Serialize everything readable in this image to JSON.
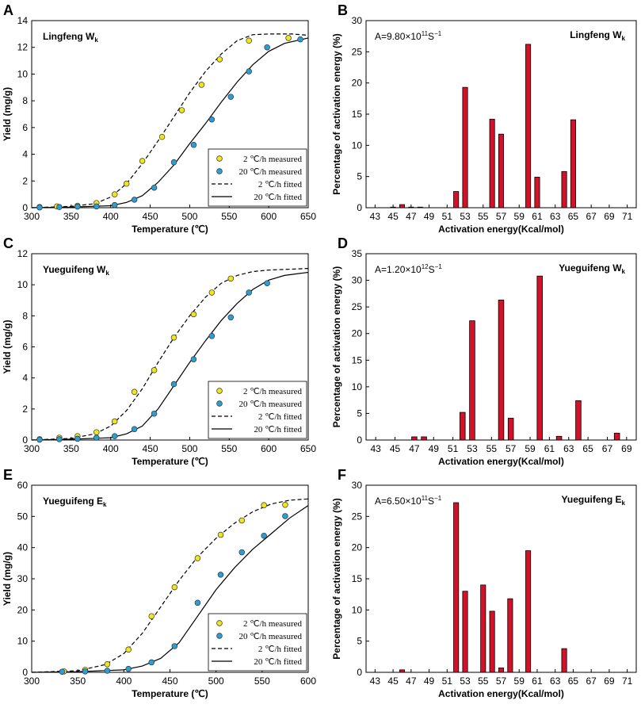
{
  "colors": {
    "marker_2": "#f2e51a",
    "marker_20": "#2a9fd6",
    "bar": "#d3122a",
    "axis": "#000000"
  },
  "chart_data": [
    {
      "id": "A",
      "type": "line",
      "letter": "A",
      "inner_label": "Lingfeng W",
      "inner_sub": "k",
      "xlabel": "Temperature  (℃)",
      "ylabel": "Yield  (mg/g)",
      "xlim": [
        300,
        650
      ],
      "ylim": [
        0,
        14
      ],
      "xticks": [
        "300",
        "350",
        "400",
        "450",
        "500",
        "550",
        "600",
        "650"
      ],
      "yticks": [
        "0",
        "2",
        "4",
        "6",
        "8",
        "10",
        "12",
        "14"
      ],
      "legend": [
        "2 ℃/h  measured",
        "20 ℃/h  measured",
        "2 ℃/h  fitted",
        "20 ℃/h  fitted"
      ],
      "series": [
        {
          "name": "2 ℃/h measured",
          "kind": "marker",
          "color": "#f2e51a",
          "x": [
            310,
            332,
            358,
            382,
            405,
            420,
            440,
            465,
            490,
            515,
            538,
            575,
            625
          ],
          "y": [
            0.05,
            0.1,
            0.15,
            0.35,
            1.0,
            1.8,
            3.5,
            5.3,
            7.3,
            9.2,
            11.1,
            12.5,
            12.7
          ]
        },
        {
          "name": "20 ℃/h measured",
          "kind": "marker",
          "color": "#2a9fd6",
          "x": [
            310,
            335,
            358,
            382,
            405,
            430,
            455,
            480,
            505,
            528,
            552,
            575,
            598,
            640
          ],
          "y": [
            0.02,
            0.05,
            0.08,
            0.1,
            0.2,
            0.6,
            1.5,
            3.4,
            4.7,
            6.6,
            8.3,
            10.2,
            12.0,
            12.6
          ]
        },
        {
          "name": "2 ℃/h fitted",
          "kind": "dashed",
          "x": [
            300,
            350,
            380,
            400,
            420,
            440,
            460,
            480,
            500,
            520,
            540,
            560,
            580,
            600,
            630,
            650
          ],
          "y": [
            0,
            0.1,
            0.3,
            0.8,
            1.8,
            3.3,
            5.0,
            6.8,
            8.6,
            10.2,
            11.5,
            12.5,
            12.95,
            13.0,
            13.0,
            12.9
          ]
        },
        {
          "name": "20 ℃/h fitted",
          "kind": "solid",
          "x": [
            300,
            350,
            400,
            420,
            440,
            460,
            480,
            500,
            520,
            540,
            560,
            580,
            600,
            620,
            650
          ],
          "y": [
            0,
            0.05,
            0.15,
            0.4,
            0.9,
            1.9,
            3.2,
            4.8,
            6.3,
            7.9,
            9.4,
            10.7,
            11.7,
            12.3,
            12.7
          ]
        }
      ]
    },
    {
      "id": "B",
      "type": "bar",
      "letter": "B",
      "inner_label": "Lingfeng W",
      "inner_sub": "k",
      "annotation_prefix": "A=9.80×10",
      "annotation_exp": "11",
      "annotation_unit": "S",
      "annotation_unit_exp": "−1",
      "xlabel": "Activation energy(Kcal/mol)",
      "ylabel": "Percentage of activation energy (%)",
      "xlim": [
        42,
        72
      ],
      "ylim": [
        0,
        30
      ],
      "xticks": [
        "43",
        "45",
        "47",
        "49",
        "51",
        "53",
        "55",
        "57",
        "59",
        "61",
        "63",
        "65",
        "67",
        "69",
        "71"
      ],
      "yticks": [
        "0",
        "5",
        "10",
        "15",
        "20",
        "25",
        "30"
      ],
      "x": [
        45,
        46,
        47,
        48,
        52,
        53,
        56,
        57,
        60,
        61,
        64,
        65
      ],
      "values": [
        0.1,
        0.5,
        0.1,
        0.1,
        2.6,
        19.3,
        14.2,
        11.8,
        26.2,
        4.9,
        5.8,
        14.1
      ]
    },
    {
      "id": "C",
      "type": "line",
      "letter": "C",
      "inner_label": "Yueguifeng W",
      "inner_sub": "k",
      "xlabel": "Temperature  (℃)",
      "ylabel": "Yield  (mg/g)",
      "xlim": [
        300,
        650
      ],
      "ylim": [
        0,
        12
      ],
      "xticks": [
        "300",
        "350",
        "400",
        "450",
        "500",
        "550",
        "600",
        "650"
      ],
      "yticks": [
        "0",
        "2",
        "4",
        "6",
        "8",
        "10",
        "12"
      ],
      "legend": [
        "2 ℃/h  measured",
        "20 ℃/h  measured",
        "2 ℃/h  fitted",
        "20 ℃/h  fitted"
      ],
      "series": [
        {
          "name": "2 ℃/h measured",
          "kind": "marker",
          "color": "#f2e51a",
          "x": [
            310,
            335,
            358,
            382,
            405,
            430,
            455,
            480,
            505,
            528,
            552
          ],
          "y": [
            0.05,
            0.15,
            0.25,
            0.5,
            1.2,
            3.1,
            4.5,
            6.6,
            8.1,
            9.5,
            10.4
          ]
        },
        {
          "name": "20 ℃/h measured",
          "kind": "marker",
          "color": "#2a9fd6",
          "x": [
            310,
            335,
            358,
            382,
            405,
            430,
            455,
            480,
            505,
            528,
            552,
            575,
            598
          ],
          "y": [
            0.02,
            0.05,
            0.08,
            0.15,
            0.25,
            0.7,
            1.7,
            3.6,
            5.2,
            6.7,
            7.9,
            9.5,
            10.1
          ]
        },
        {
          "name": "2 ℃/h fitted",
          "kind": "dashed",
          "x": [
            300,
            350,
            380,
            400,
            420,
            440,
            460,
            480,
            500,
            520,
            540,
            560,
            580,
            600,
            650
          ],
          "y": [
            0,
            0.1,
            0.4,
            0.9,
            1.9,
            3.3,
            5.0,
            6.6,
            8.0,
            9.2,
            10.1,
            10.6,
            10.85,
            10.95,
            11.05
          ]
        },
        {
          "name": "20 ℃/h fitted",
          "kind": "solid",
          "x": [
            300,
            350,
            400,
            420,
            440,
            460,
            480,
            500,
            520,
            540,
            560,
            580,
            600,
            620,
            650
          ],
          "y": [
            0,
            0.05,
            0.15,
            0.4,
            0.9,
            2.0,
            3.5,
            5.0,
            6.4,
            7.7,
            8.8,
            9.7,
            10.3,
            10.6,
            10.8
          ]
        }
      ]
    },
    {
      "id": "D",
      "type": "bar",
      "letter": "D",
      "inner_label": "Yueguifeng W",
      "inner_sub": "k",
      "annotation_prefix": "A=1.20×10",
      "annotation_exp": "12",
      "annotation_unit": "S",
      "annotation_unit_exp": "−1",
      "xlabel": "Activation energy(Kcal/mol)",
      "ylabel": "Percentage of activation energy (%)",
      "xlim": [
        42,
        70
      ],
      "ylim": [
        0,
        35
      ],
      "xticks": [
        "43",
        "45",
        "47",
        "49",
        "51",
        "53",
        "55",
        "57",
        "59",
        "61",
        "63",
        "65",
        "67",
        "69"
      ],
      "yticks": [
        "0",
        "5",
        "10",
        "15",
        "20",
        "25",
        "30",
        "35"
      ],
      "x": [
        47,
        48,
        52,
        53,
        56,
        57,
        60,
        62,
        64,
        68
      ],
      "values": [
        0.6,
        0.6,
        5.2,
        22.4,
        26.3,
        4.1,
        30.8,
        0.7,
        7.4,
        1.3
      ]
    },
    {
      "id": "E",
      "type": "line",
      "letter": "E",
      "inner_label": "Yueguifeng E",
      "inner_sub": "k",
      "xlabel": "Temperature  (℃)",
      "ylabel": "Yield  (mg/g)",
      "xlim": [
        300,
        600
      ],
      "ylim": [
        0,
        60
      ],
      "xticks": [
        "300",
        "350",
        "400",
        "450",
        "500",
        "550",
        "600"
      ],
      "yticks": [
        "0",
        "10",
        "20",
        "30",
        "40",
        "50",
        "60"
      ],
      "legend": [
        "2 ℃/h  measured",
        "20 ℃/h  measured",
        "2 ℃/h  fitted",
        "20 ℃/h  fitted"
      ],
      "series": [
        {
          "name": "2 ℃/h measured",
          "kind": "marker",
          "color": "#f2e51a",
          "x": [
            335,
            358,
            382,
            405,
            430,
            455,
            480,
            505,
            528,
            552,
            575
          ],
          "y": [
            0.3,
            0.8,
            2.6,
            7.3,
            18.0,
            27.3,
            36.6,
            44.1,
            48.7,
            53.6,
            53.7
          ]
        },
        {
          "name": "20 ℃/h measured",
          "kind": "marker",
          "color": "#2a9fd6",
          "x": [
            333,
            358,
            382,
            405,
            430,
            455,
            480,
            505,
            528,
            552,
            575
          ],
          "y": [
            0.2,
            0.3,
            0.5,
            1.1,
            3.2,
            8.4,
            22.3,
            31.3,
            38.5,
            43.8,
            50.1
          ]
        },
        {
          "name": "2 ℃/h fitted",
          "kind": "dashed",
          "x": [
            300,
            350,
            380,
            400,
            420,
            440,
            460,
            480,
            500,
            520,
            540,
            560,
            580,
            600
          ],
          "y": [
            0,
            0.5,
            2.5,
            6.0,
            12.5,
            21.0,
            29.5,
            37.0,
            43.0,
            47.8,
            51.5,
            54.0,
            55.2,
            55.6
          ]
        },
        {
          "name": "20 ℃/h fitted",
          "kind": "solid",
          "x": [
            300,
            350,
            400,
            420,
            440,
            460,
            480,
            500,
            520,
            540,
            560,
            580,
            600
          ],
          "y": [
            0,
            0.2,
            0.8,
            2.0,
            4.5,
            9.5,
            18.0,
            26.5,
            33.5,
            39.5,
            44.5,
            49.5,
            53.5
          ]
        }
      ]
    },
    {
      "id": "F",
      "type": "bar",
      "letter": "F",
      "inner_label": "Yueguifeng E",
      "inner_sub": "k",
      "annotation_prefix": "A=6.50×10",
      "annotation_exp": "11",
      "annotation_unit": "S",
      "annotation_unit_exp": "−1",
      "xlabel": "Activation energy(Kcal/mol)",
      "ylabel": "Percentage of activation energy (%)",
      "xlim": [
        42,
        72
      ],
      "ylim": [
        0,
        30
      ],
      "xticks": [
        "43",
        "45",
        "47",
        "49",
        "51",
        "53",
        "55",
        "57",
        "59",
        "61",
        "63",
        "65",
        "67",
        "69",
        "71"
      ],
      "yticks": [
        "0",
        "5",
        "10",
        "15",
        "20",
        "25",
        "30"
      ],
      "x": [
        46,
        52,
        53,
        55,
        56,
        57,
        58,
        60,
        64
      ],
      "values": [
        0.4,
        27.2,
        13.0,
        14.0,
        9.8,
        0.7,
        11.8,
        19.5,
        3.8
      ]
    }
  ]
}
